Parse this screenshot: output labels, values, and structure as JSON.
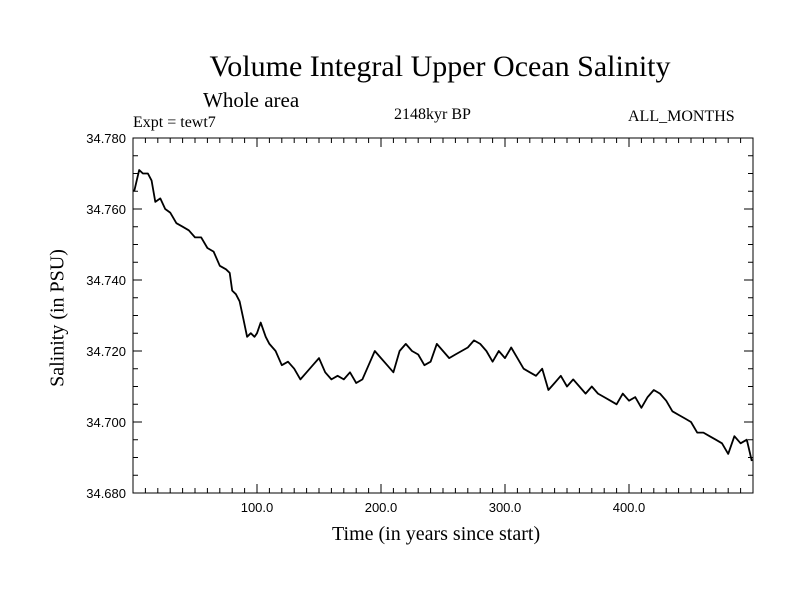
{
  "chart_data": {
    "type": "line",
    "title": "Volume Integral Upper Ocean Salinity",
    "subtitle": "Whole area",
    "annotations": {
      "experiment": "Expt = tewt7",
      "period": "2148kyr BP",
      "months": "ALL_MONTHS"
    },
    "xlabel": "Time (in years since start)",
    "ylabel": "Salinity (in PSU)",
    "xlim": [
      0,
      500
    ],
    "ylim": [
      34.68,
      34.78
    ],
    "xticks": [
      100,
      200,
      300,
      400
    ],
    "xtick_labels": [
      "100.0",
      "200.0",
      "300.0",
      "400.0"
    ],
    "yticks": [
      34.68,
      34.7,
      34.72,
      34.74,
      34.76,
      34.78
    ],
    "ytick_labels": [
      "34.680",
      "34.700",
      "34.720",
      "34.740",
      "34.760",
      "34.780"
    ],
    "grid": false,
    "series": [
      {
        "name": "salinity",
        "color": "#000000",
        "x": [
          1,
          3,
          5,
          8,
          12,
          15,
          18,
          22,
          26,
          30,
          35,
          40,
          45,
          50,
          55,
          60,
          65,
          70,
          75,
          78,
          80,
          83,
          86,
          89,
          92,
          95,
          98,
          100,
          103,
          107,
          110,
          115,
          120,
          125,
          130,
          135,
          140,
          145,
          150,
          155,
          160,
          165,
          170,
          175,
          180,
          185,
          190,
          195,
          200,
          205,
          210,
          215,
          220,
          225,
          230,
          235,
          240,
          245,
          250,
          255,
          260,
          265,
          270,
          275,
          280,
          285,
          290,
          295,
          300,
          305,
          310,
          315,
          320,
          325,
          330,
          335,
          340,
          345,
          350,
          355,
          360,
          365,
          370,
          375,
          380,
          385,
          390,
          395,
          400,
          405,
          410,
          415,
          420,
          425,
          430,
          435,
          440,
          445,
          450,
          455,
          460,
          465,
          470,
          475,
          480,
          485,
          490,
          495,
          499
        ],
        "values": [
          34.765,
          34.768,
          34.771,
          34.77,
          34.77,
          34.768,
          34.762,
          34.763,
          34.76,
          34.759,
          34.756,
          34.755,
          34.754,
          34.752,
          34.752,
          34.749,
          34.748,
          34.744,
          34.743,
          34.742,
          34.737,
          34.736,
          34.734,
          34.729,
          34.724,
          34.725,
          34.724,
          34.725,
          34.728,
          34.724,
          34.722,
          34.72,
          34.716,
          34.717,
          34.715,
          34.712,
          34.714,
          34.716,
          34.718,
          34.714,
          34.712,
          34.713,
          34.712,
          34.714,
          34.711,
          34.712,
          34.716,
          34.72,
          34.718,
          34.716,
          34.714,
          34.72,
          34.722,
          34.72,
          34.719,
          34.716,
          34.717,
          34.722,
          34.72,
          34.718,
          34.719,
          34.72,
          34.721,
          34.723,
          34.722,
          34.72,
          34.717,
          34.72,
          34.718,
          34.721,
          34.718,
          34.715,
          34.714,
          34.713,
          34.715,
          34.709,
          34.711,
          34.713,
          34.71,
          34.712,
          34.71,
          34.708,
          34.71,
          34.708,
          34.707,
          34.706,
          34.705,
          34.708,
          34.706,
          34.707,
          34.704,
          34.707,
          34.709,
          34.708,
          34.706,
          34.703,
          34.702,
          34.701,
          34.7,
          34.697,
          34.697,
          34.696,
          34.695,
          34.694,
          34.691,
          34.696,
          34.694,
          34.695,
          34.689
        ]
      }
    ]
  }
}
